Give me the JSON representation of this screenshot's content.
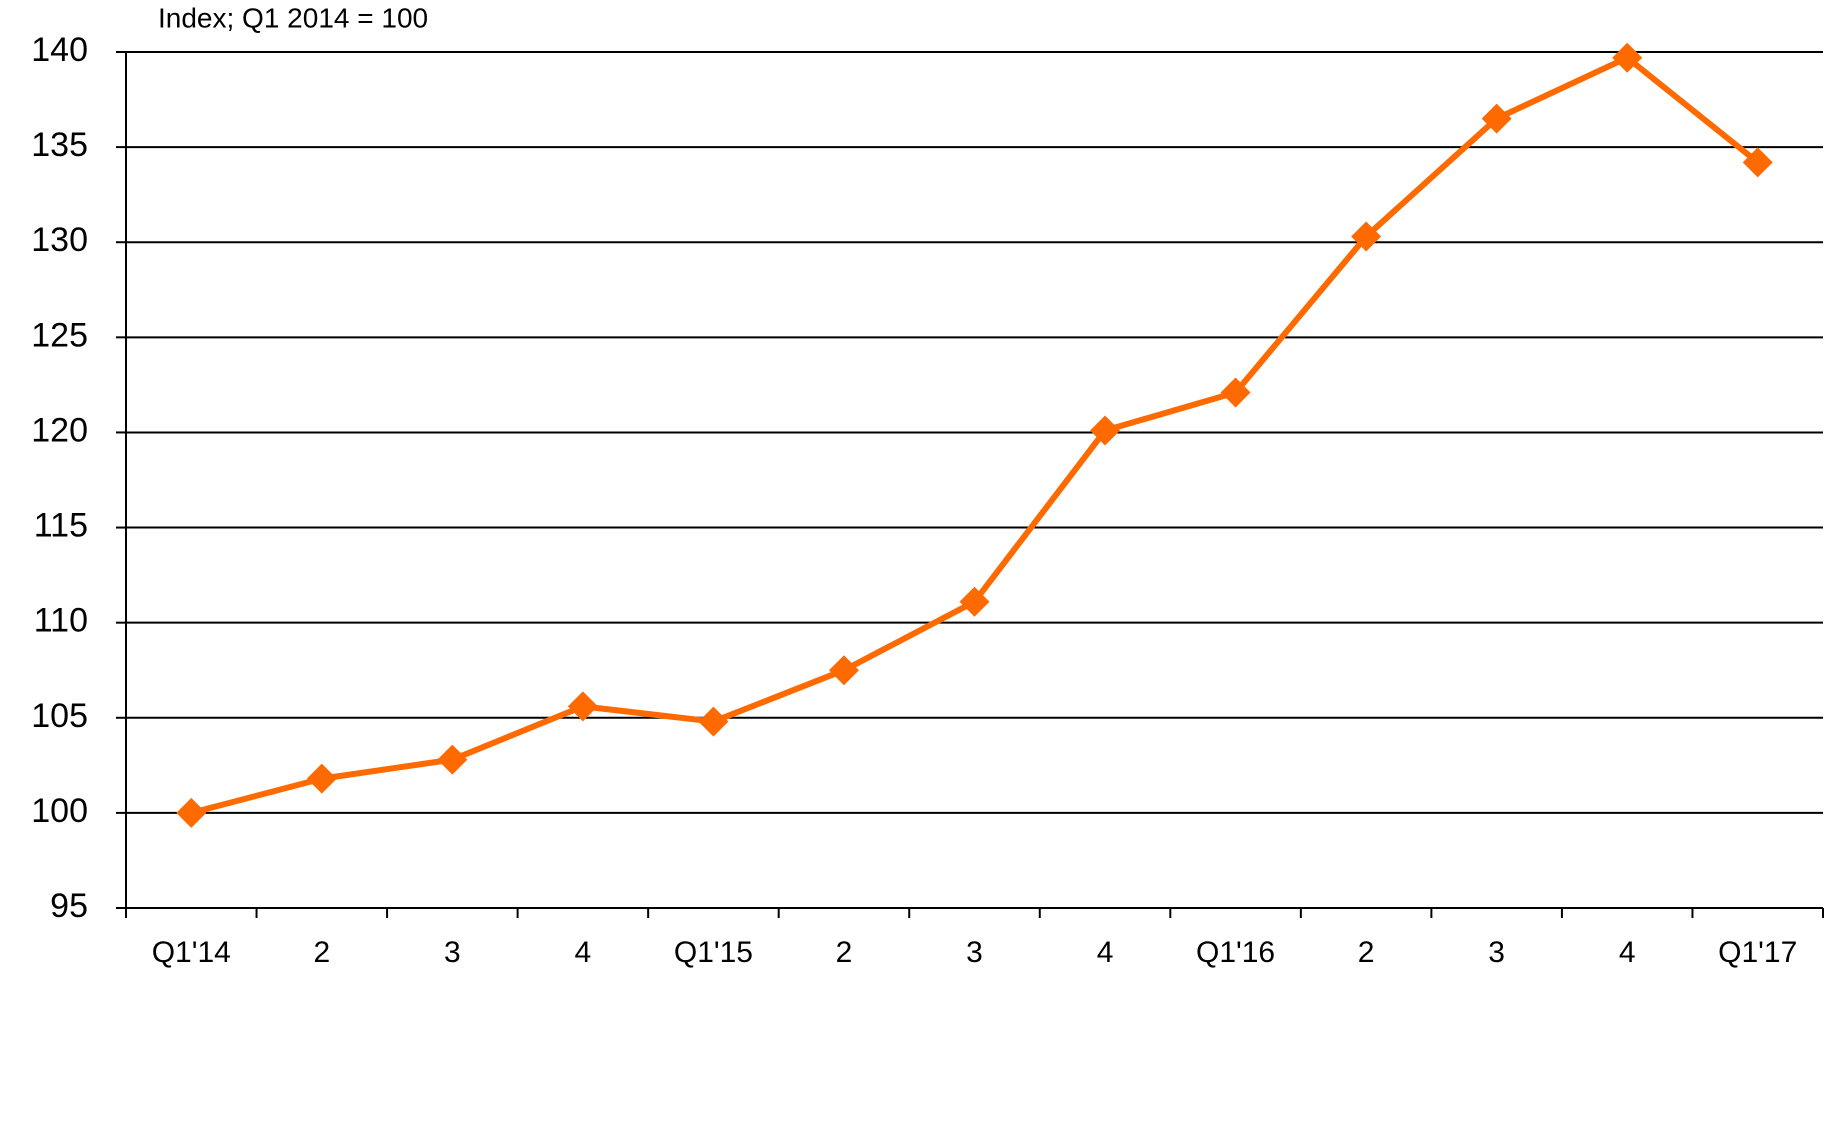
{
  "chart_data": {
    "type": "line",
    "title": "Index; Q1 2014 = 100",
    "categories": [
      "Q1'14",
      "2",
      "3",
      "4",
      "Q1'15",
      "2",
      "3",
      "4",
      "Q1'16",
      "2",
      "3",
      "4",
      "Q1'17"
    ],
    "series": [
      {
        "name": "Index",
        "color": "#ff6a00",
        "values": [
          100,
          101.8,
          102.8,
          105.6,
          104.8,
          107.5,
          111.1,
          120.1,
          122.1,
          130.3,
          136.5,
          139.7,
          134.2
        ]
      }
    ],
    "ylim": [
      95,
      140
    ],
    "yticks": [
      95,
      100,
      105,
      110,
      115,
      120,
      125,
      130,
      135,
      140
    ],
    "grid": true
  }
}
